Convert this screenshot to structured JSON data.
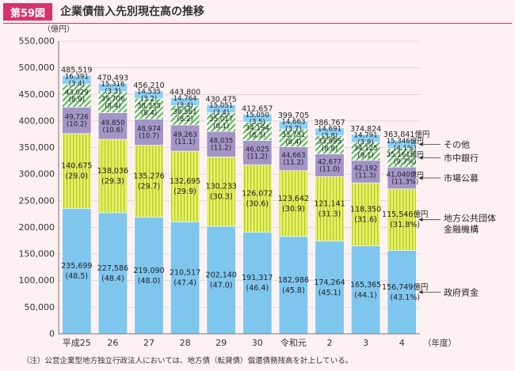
{
  "figure": {
    "label": "第59図",
    "title": "企業債借入先別現在高の推移",
    "note": "（注）公営企業型地方独立行政法人においては、地方債（転貸債）償還債務残高を計上している。"
  },
  "chart_data": {
    "type": "bar",
    "stacked": true,
    "ylabel": "（億円）",
    "xlabel": "（年度）",
    "ylim": [
      0,
      550000
    ],
    "yticks": [
      0,
      50000,
      100000,
      150000,
      200000,
      250000,
      300000,
      350000,
      400000,
      450000,
      500000,
      550000
    ],
    "ytick_labels": [
      "0",
      "50,000",
      "100,000",
      "150,000",
      "200,000",
      "250,000",
      "300,000",
      "350,000",
      "400,000",
      "450,000",
      "500,000",
      "550,000"
    ],
    "categories": [
      "平成25",
      "26",
      "27",
      "28",
      "29",
      "30",
      "令和元",
      "2",
      "3",
      "4"
    ],
    "totals": [
      485519,
      470493,
      456210,
      443800,
      430475,
      412657,
      399705,
      386767,
      374824,
      363841
    ],
    "total_labels": [
      "485,519",
      "470,493",
      "456,210",
      "443,800",
      "430,475",
      "412,657",
      "399,705",
      "386,767",
      "374,824",
      "363,841億円"
    ],
    "series": [
      {
        "name": "政府資金",
        "color": "#7fc6ef",
        "values": [
          235699,
          227586,
          219090,
          210517,
          202140,
          191317,
          182986,
          174264,
          165365,
          156749
        ],
        "labels": [
          "235,699",
          "227,586",
          "219,090",
          "210,517",
          "202,140",
          "191,317",
          "182,986",
          "174,264",
          "165,365",
          "156,749億円"
        ],
        "pct_labels": [
          "(48.5)",
          "(48.4)",
          "(48.0)",
          "(47.4)",
          "(47.0)",
          "(46.4)",
          "(45.8)",
          "(45.1)",
          "(44.1)",
          "(43.1%)"
        ]
      },
      {
        "name": "地方公共団体金融機構",
        "name_lines": [
          "地方公共団体",
          "金融機構"
        ],
        "color": "#d7e84a",
        "values": [
          140675,
          138036,
          135276,
          132695,
          130233,
          126072,
          123642,
          121141,
          118350,
          115546
        ],
        "labels": [
          "140,675",
          "138,036",
          "135,276",
          "132,695",
          "130,233",
          "126,072",
          "123,642",
          "121,141",
          "118,350",
          "115,546億円"
        ],
        "pct_labels": [
          "(29.0)",
          "(29.3)",
          "(29.7)",
          "(29.9)",
          "(30.3)",
          "(30.6)",
          "(30.9)",
          "(31.3)",
          "(31.6)",
          "(31.8%)"
        ]
      },
      {
        "name": "市場公募",
        "color": "#a495c9",
        "values": [
          49726,
          49850,
          48974,
          49263,
          48035,
          46025,
          44663,
          42677,
          42192,
          41040
        ],
        "labels": [
          "49,726",
          "49,850",
          "48,974",
          "49,263",
          "48,035",
          "46,025",
          "44,663",
          "42,677",
          "42,192",
          "41,040億円"
        ],
        "pct_labels": [
          "(10.2)",
          "(10.6)",
          "(10.7)",
          "(11.1)",
          "(11.2)",
          "(11.2)",
          "(11.2)",
          "(11.0)",
          "(11.3)",
          "(11.3%)"
        ]
      },
      {
        "name": "市中銀行",
        "color": "#5dba5a",
        "values": [
          43029,
          39706,
          38335,
          36561,
          35017,
          34194,
          33751,
          33995,
          34125,
          35161
        ],
        "labels": [
          "43,029",
          "39,706",
          "38,335",
          "36,561",
          "35,017",
          "34,194",
          "33,751",
          "33,995",
          "34,125",
          "35,161億円"
        ],
        "pct_labels": [
          "(8.9)",
          "(8.4)",
          "(8.4)",
          "(8.2)",
          "(8.1)",
          "(8.3)",
          "(8.4)",
          "(8.8)",
          "(9.1)",
          "(9.7%)"
        ]
      },
      {
        "name": "その他",
        "color": "#8fd0f2",
        "values": [
          16391,
          15316,
          14535,
          14764,
          15051,
          15050,
          14663,
          14691,
          14791,
          15346
        ],
        "labels": [
          "16,391",
          "15,316",
          "14,535",
          "14,764",
          "15,051",
          "15,050",
          "14,663",
          "14,691",
          "14,791",
          "15,346億円"
        ],
        "pct_labels": [
          "(3.4)",
          "(3.3)",
          "(3.2)",
          "(3.4)",
          "(3.4)",
          "(3.5)",
          "(3.7)",
          "(3.8)",
          "(3.9)",
          "(4.1%)"
        ]
      }
    ]
  }
}
